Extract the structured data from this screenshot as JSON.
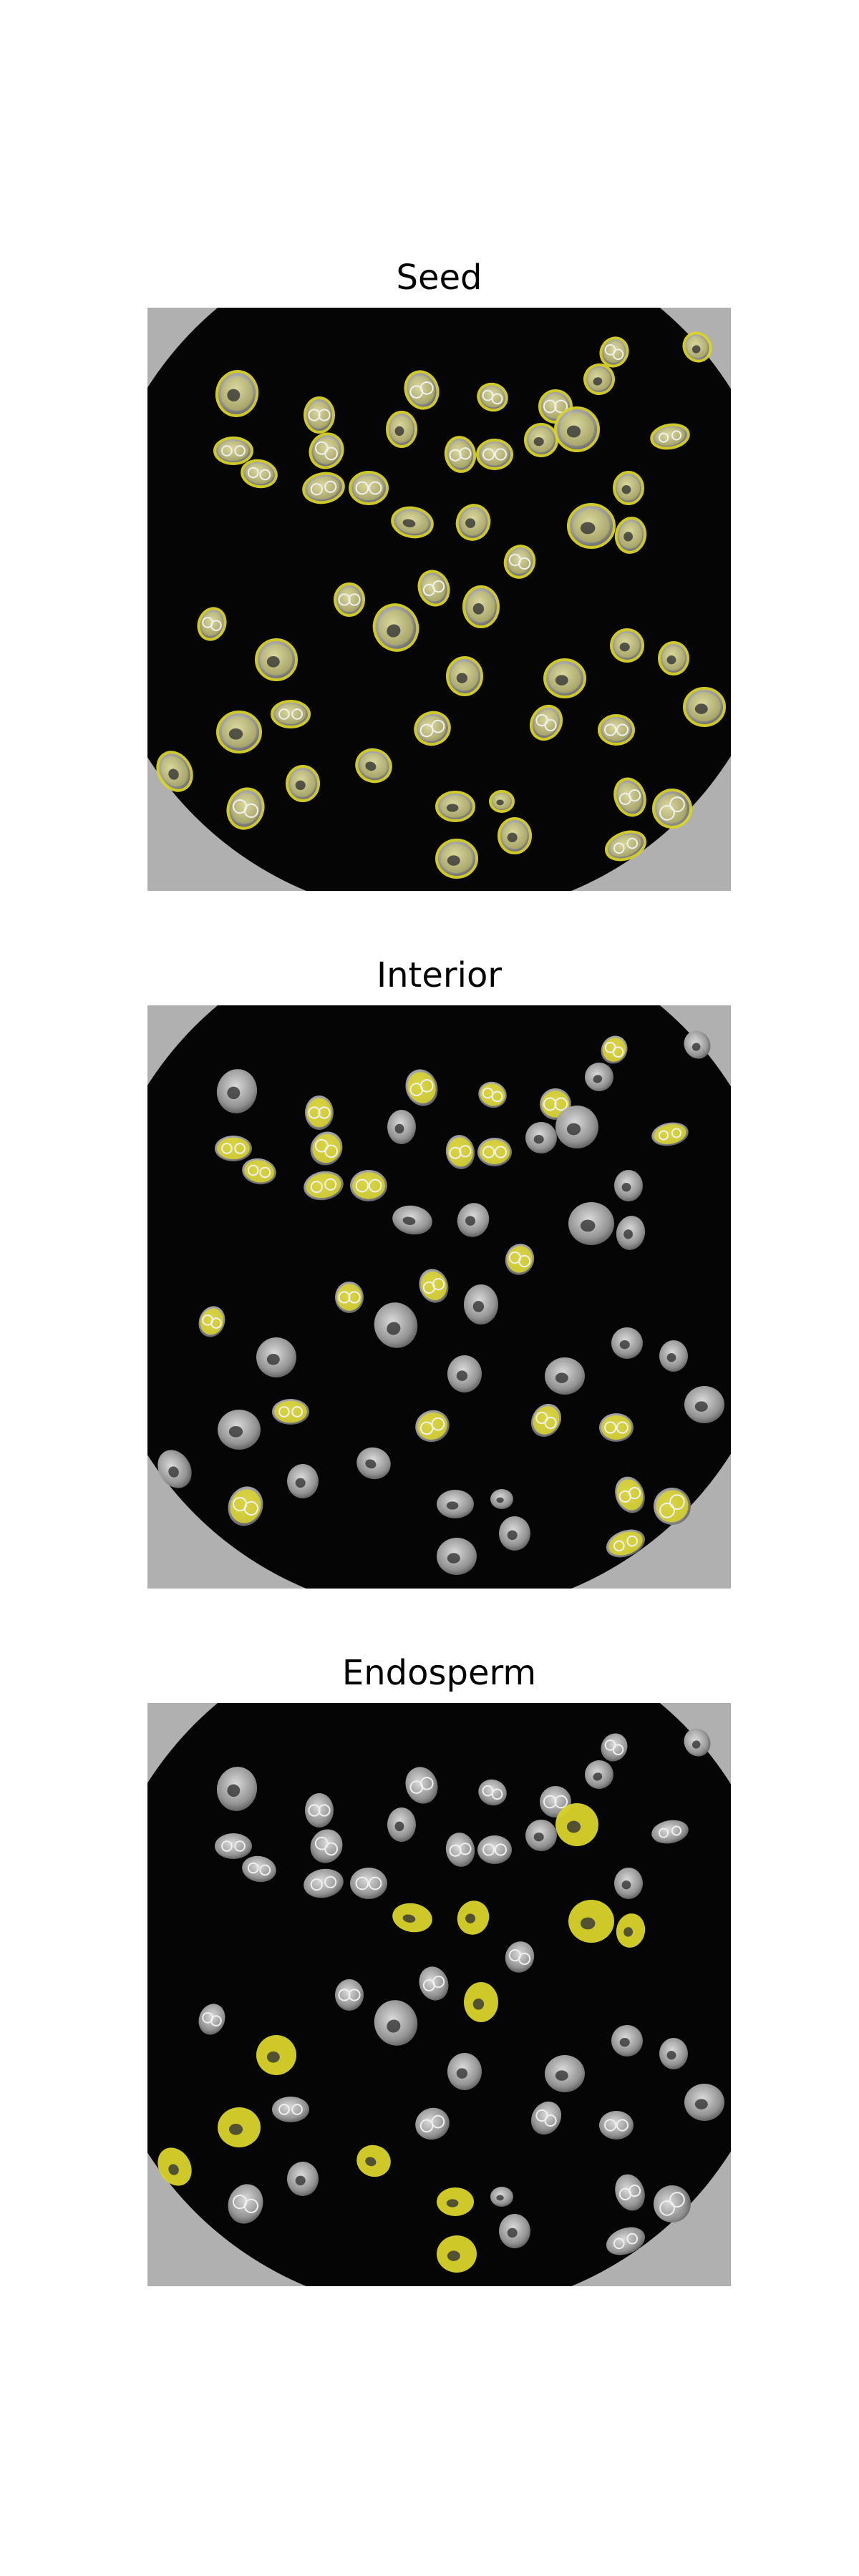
{
  "panels": [
    {
      "title": "Seed",
      "highlight": "all seeds",
      "mask_color": "#d9d42a"
    },
    {
      "title": "Interior",
      "highlight": "seed interiors",
      "mask_color": "#d9d42a"
    },
    {
      "title": "Endosperm",
      "highlight": "endosperm regions",
      "mask_color": "#d9d42a"
    }
  ],
  "colors": {
    "background": "#ffffff",
    "scan_background": "#050505",
    "container_ring": "#b0b0b0",
    "seed_gray": "#bdbdbd",
    "mask_yellow": "#d9d42a"
  }
}
